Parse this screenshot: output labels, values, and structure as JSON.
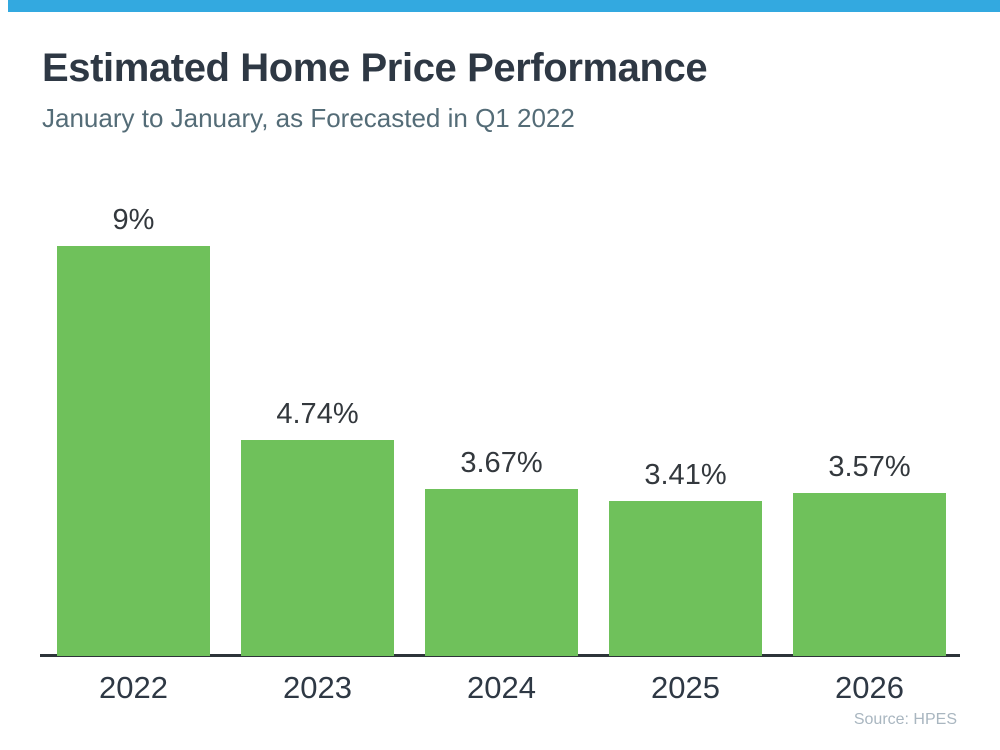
{
  "page": {
    "accent_color": "#33a9e0",
    "background": "#ffffff"
  },
  "header": {
    "title": "Estimated Home Price Performance",
    "subtitle": "January to January, as Forecasted in Q1 2022"
  },
  "chart_data": {
    "type": "bar",
    "title": "Estimated Home Price Performance",
    "subtitle": "January to January, as Forecasted in Q1 2022",
    "categories": [
      "2022",
      "2023",
      "2024",
      "2025",
      "2026"
    ],
    "values": [
      9,
      4.74,
      3.67,
      3.41,
      3.57
    ],
    "value_labels": [
      "9%",
      "4.74%",
      "3.67%",
      "3.41%",
      "3.57%"
    ],
    "xlabel": "",
    "ylabel": "",
    "ylim": [
      0,
      9.7
    ],
    "grid": false,
    "legend": false,
    "bar_color": "#6fc15b",
    "value_label_color": "#33383d",
    "category_label_color": "#2e3844",
    "axis_line_color": "#2d3439"
  },
  "footer": {
    "source": "Source: HPES"
  }
}
